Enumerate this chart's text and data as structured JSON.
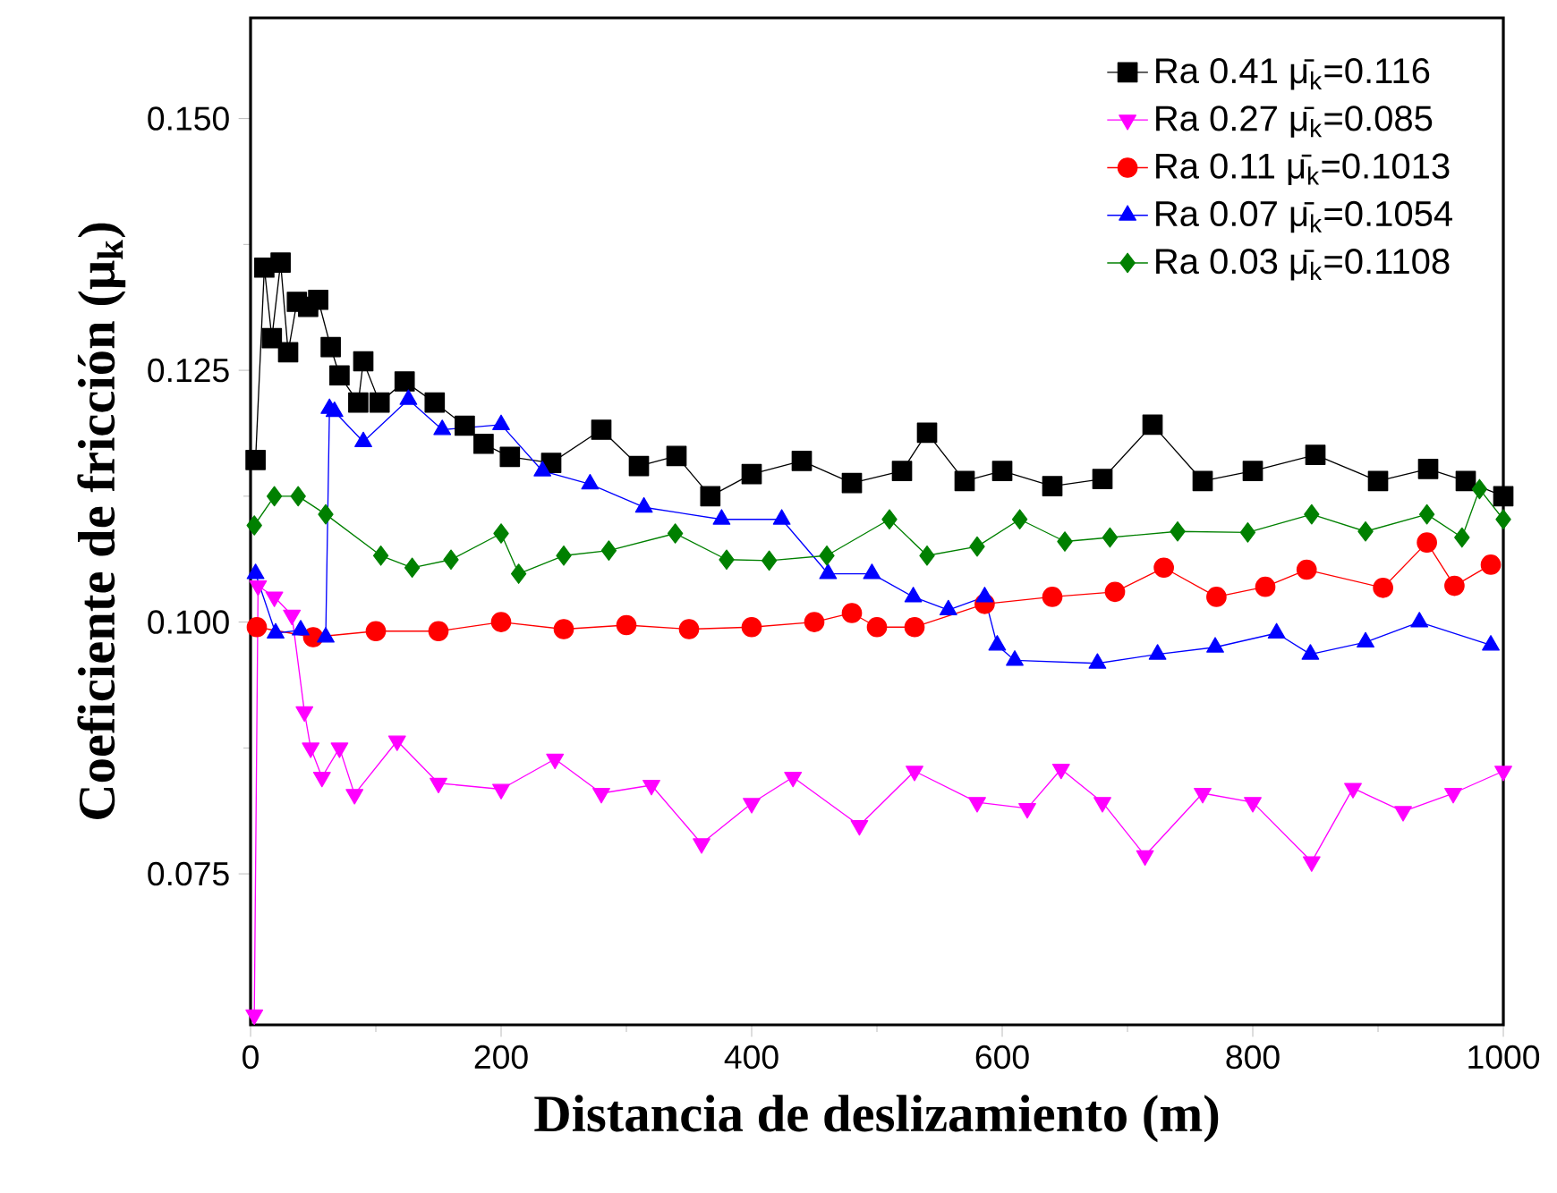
{
  "chart_data": {
    "type": "line",
    "xlabel": "Distancia de deslizamiento (m)",
    "ylabel": "Coeficiente de fricción (μ$_{k}$)",
    "xlim": [
      0,
      1000
    ],
    "ylim": [
      0.06,
      0.16
    ],
    "xticks": [
      0,
      200,
      400,
      600,
      800,
      1000
    ],
    "yticks": [
      {
        "value": 0.075,
        "label": "0.075"
      },
      {
        "value": 0.1,
        "label": "0.100"
      },
      {
        "value": 0.125,
        "label": "0.125"
      },
      {
        "value": 0.15,
        "label": "0.150"
      }
    ],
    "grid": false,
    "legend": "top right",
    "line_style": "solid",
    "series": [
      {
        "name": "Ra 0.41   μ̄$_{k}$=0.116",
        "color": "#000000",
        "marker": "square",
        "x": [
          4,
          11,
          17,
          24,
          30,
          37,
          46,
          54,
          64,
          71,
          86,
          90,
          103,
          123,
          147,
          171,
          186,
          207,
          240,
          280,
          310,
          340,
          367,
          400,
          440,
          480,
          520,
          540,
          570,
          600,
          640,
          680,
          720,
          760,
          800,
          850,
          900,
          940,
          970,
          1000
        ],
        "values": [
          0.1161,
          0.1352,
          0.1282,
          0.1357,
          0.1268,
          0.1318,
          0.1313,
          0.132,
          0.1273,
          0.1245,
          0.1218,
          0.1259,
          0.1218,
          0.1239,
          0.1218,
          0.1195,
          0.1177,
          0.1164,
          0.1158,
          0.1191,
          0.1155,
          0.1165,
          0.1125,
          0.1147,
          0.116,
          0.1138,
          0.115,
          0.1188,
          0.114,
          0.115,
          0.1135,
          0.1142,
          0.1196,
          0.114,
          0.115,
          0.1166,
          0.114,
          0.1152,
          0.114,
          0.1125
        ]
      },
      {
        "name": "Ra 0.27   μ̄$_{k}$=0.085",
        "color": "#ff00ff",
        "marker": "triangle-down",
        "x": [
          3,
          6,
          19,
          33,
          43,
          48,
          57,
          71,
          83,
          117,
          150,
          200,
          243,
          280,
          320,
          360,
          400,
          433,
          486,
          530,
          580,
          620,
          647,
          680,
          714,
          760,
          800,
          847,
          880,
          920,
          960,
          1000
        ],
        "values": [
          0.061,
          0.1036,
          0.1025,
          0.1007,
          0.0911,
          0.0875,
          0.0846,
          0.0875,
          0.0829,
          0.0882,
          0.084,
          0.0834,
          0.0864,
          0.083,
          0.0838,
          0.078,
          0.082,
          0.0846,
          0.0798,
          0.0852,
          0.0821,
          0.0815,
          0.0854,
          0.0821,
          0.0768,
          0.083,
          0.0821,
          0.0762,
          0.0835,
          0.0812,
          0.083,
          0.0852
        ]
      },
      {
        "name": "Ra 0.11   μ̄$_{k}$=0.1013",
        "color": "#ff0000",
        "marker": "circle",
        "x": [
          5,
          50,
          100,
          150,
          200,
          250,
          300,
          350,
          400,
          450,
          480,
          500,
          530,
          586,
          640,
          690,
          729,
          771,
          810,
          843,
          904,
          939,
          961,
          990
        ],
        "values": [
          0.0995,
          0.0985,
          0.0991,
          0.0991,
          0.1,
          0.0993,
          0.0997,
          0.0993,
          0.0995,
          0.1,
          0.1009,
          0.0995,
          0.0995,
          0.1018,
          0.1025,
          0.103,
          0.1054,
          0.1025,
          0.1035,
          0.1052,
          0.1034,
          0.1079,
          0.1036,
          0.1057
        ]
      },
      {
        "name": "Ra 0.07   μ̄$_{k}$=0.1054",
        "color": "#0000ff",
        "marker": "triangle",
        "x": [
          4,
          20,
          40,
          60,
          63,
          67,
          90,
          126,
          153,
          200,
          233,
          271,
          314,
          376,
          424,
          461,
          496,
          529,
          557,
          586,
          596,
          610,
          676,
          724,
          770,
          819,
          846,
          890,
          933,
          990
        ],
        "values": [
          0.1048,
          0.0989,
          0.0992,
          0.0985,
          0.1212,
          0.1209,
          0.1179,
          0.1221,
          0.1191,
          0.1196,
          0.115,
          0.1137,
          0.1114,
          0.1102,
          0.1102,
          0.1048,
          0.1048,
          0.1025,
          0.1012,
          0.1025,
          0.0977,
          0.0962,
          0.0959,
          0.0968,
          0.0975,
          0.0989,
          0.0968,
          0.098,
          0.1,
          0.0977
        ]
      },
      {
        "name": "Ra 0.03   μ̄$_{k}$=0.1108",
        "color": "#008000",
        "marker": "diamond",
        "x": [
          3,
          19,
          38,
          60,
          104,
          129,
          160,
          200,
          214,
          250,
          286,
          339,
          380,
          414,
          460,
          510,
          540,
          580,
          614,
          650,
          686,
          740,
          796,
          847,
          890,
          939,
          967,
          981,
          1000
        ],
        "values": [
          0.1096,
          0.1125,
          0.1125,
          0.1107,
          0.1066,
          0.1054,
          0.1062,
          0.1088,
          0.1048,
          0.1066,
          0.1071,
          0.1088,
          0.1062,
          0.1061,
          0.1066,
          0.1102,
          0.1066,
          0.1075,
          0.1102,
          0.108,
          0.1084,
          0.109,
          0.1089,
          0.1107,
          0.109,
          0.1107,
          0.1084,
          0.1132,
          0.1102
        ]
      }
    ]
  }
}
